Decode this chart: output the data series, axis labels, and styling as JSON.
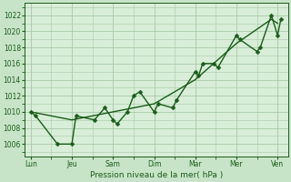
{
  "xlabel": "Pression niveau de la mer( hPa )",
  "bg_color": "#c8e4c8",
  "plot_bg_color": "#d8eed8",
  "line_color": "#1a5c1a",
  "grid_color": "#a8c8a8",
  "ylim": [
    1004.5,
    1023.5
  ],
  "yticks": [
    1006,
    1008,
    1010,
    1012,
    1014,
    1016,
    1018,
    1020,
    1022
  ],
  "x_labels": [
    "Lun",
    "Jeu",
    "Sam",
    "Dim",
    "Mar",
    "Mer",
    "Ven"
  ],
  "x_positions": [
    0,
    1,
    2,
    3,
    4,
    5,
    6
  ],
  "xlim": [
    -0.15,
    6.25
  ],
  "series1_x": [
    0.0,
    0.12,
    0.65,
    1.0,
    1.1,
    1.55,
    1.8,
    2.0,
    2.1,
    2.35,
    2.5,
    2.65,
    3.0,
    3.1,
    3.45,
    3.55,
    4.0,
    4.08,
    4.18,
    4.45,
    4.55,
    5.0,
    5.08,
    5.5,
    5.58,
    5.85,
    6.0,
    6.08
  ],
  "series1_y": [
    1010,
    1009.5,
    1006,
    1006,
    1009.5,
    1009,
    1010.5,
    1009,
    1008.5,
    1010,
    1012,
    1012.5,
    1010,
    1011,
    1010.5,
    1011.5,
    1015,
    1014.5,
    1016,
    1016,
    1015.5,
    1019.5,
    1019,
    1017.5,
    1018,
    1022,
    1019.5,
    1021.5
  ],
  "series2_x": [
    0.0,
    1.0,
    2.0,
    3.0,
    4.0,
    5.0,
    5.85,
    6.0
  ],
  "series2_y": [
    1010,
    1009,
    1010,
    1011,
    1014,
    1018.5,
    1021.5,
    1021
  ],
  "line_width": 1.0,
  "marker_size": 2.5
}
